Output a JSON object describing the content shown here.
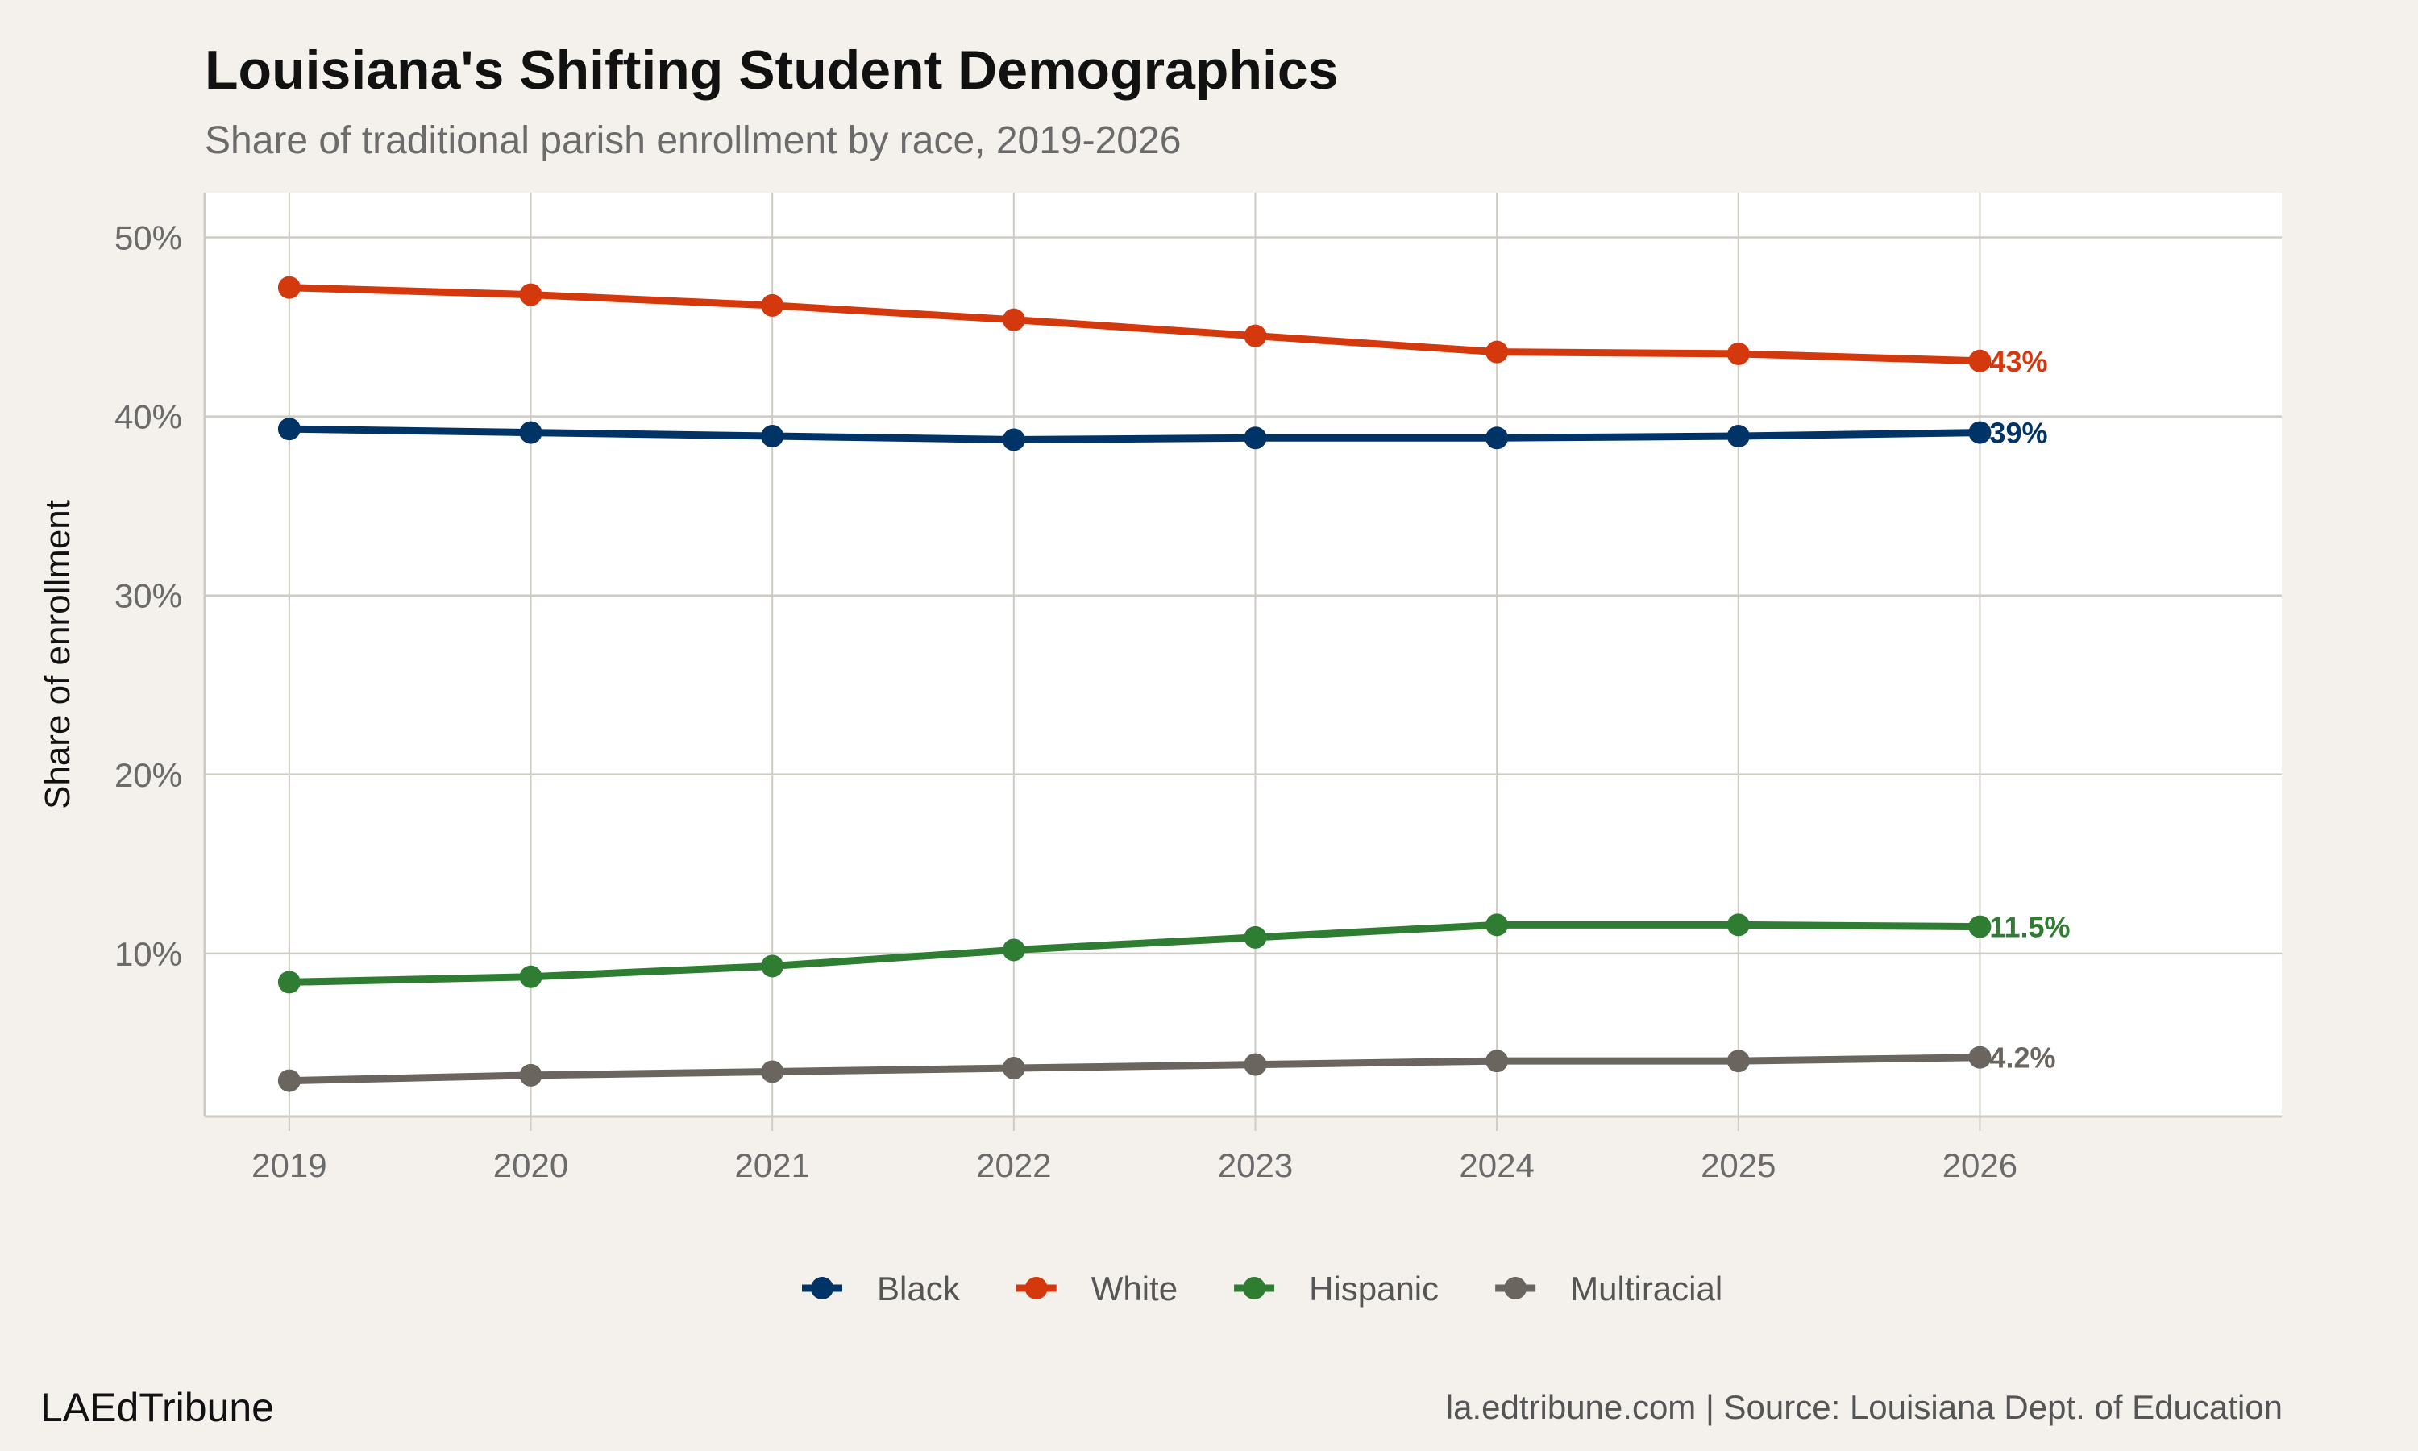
{
  "title": "Louisiana's Shifting Student Demographics",
  "subtitle": "Share of traditional parish enrollment by race, 2019-2026",
  "footer": {
    "brand": "LAEdTribune",
    "source": "la.edtribune.com | Source: Louisiana Dept. of Education"
  },
  "chart_data": {
    "type": "line",
    "title": "Louisiana's Shifting Student Demographics",
    "subtitle": "Share of traditional parish enrollment by race, 2019-2026",
    "xlabel": "",
    "ylabel": "Share of enrollment",
    "x": [
      2019,
      2020,
      2021,
      2022,
      2023,
      2024,
      2025,
      2026
    ],
    "x_tick_labels": [
      "2019",
      "2020",
      "2021",
      "2022",
      "2023",
      "2024",
      "2025",
      "2026"
    ],
    "y_ticks": [
      10,
      20,
      30,
      40,
      50
    ],
    "y_tick_labels": [
      "10%",
      "20%",
      "30%",
      "40%",
      "50%"
    ],
    "xlim": [
      2018.65,
      2027.25
    ],
    "ylim": [
      0.9,
      52.5
    ],
    "grid": true,
    "legend_position": "bottom",
    "series": [
      {
        "name": "Black",
        "color": "#003366",
        "values": [
          39.3,
          39.1,
          38.9,
          38.7,
          38.8,
          38.8,
          38.9,
          39.1
        ],
        "end_label": "39%"
      },
      {
        "name": "White",
        "color": "#D4380D",
        "values": [
          47.2,
          46.8,
          46.2,
          45.4,
          44.5,
          43.6,
          43.5,
          43.1
        ],
        "end_label": "43%"
      },
      {
        "name": "Hispanic",
        "color": "#2E7D32",
        "values": [
          8.4,
          8.7,
          9.3,
          10.2,
          10.9,
          11.6,
          11.6,
          11.5
        ],
        "end_label": "11.5%"
      },
      {
        "name": "Multiracial",
        "color": "#6B6560",
        "values": [
          2.9,
          3.2,
          3.4,
          3.6,
          3.8,
          4.0,
          4.0,
          4.2
        ],
        "end_label": "4.2%"
      }
    ]
  }
}
